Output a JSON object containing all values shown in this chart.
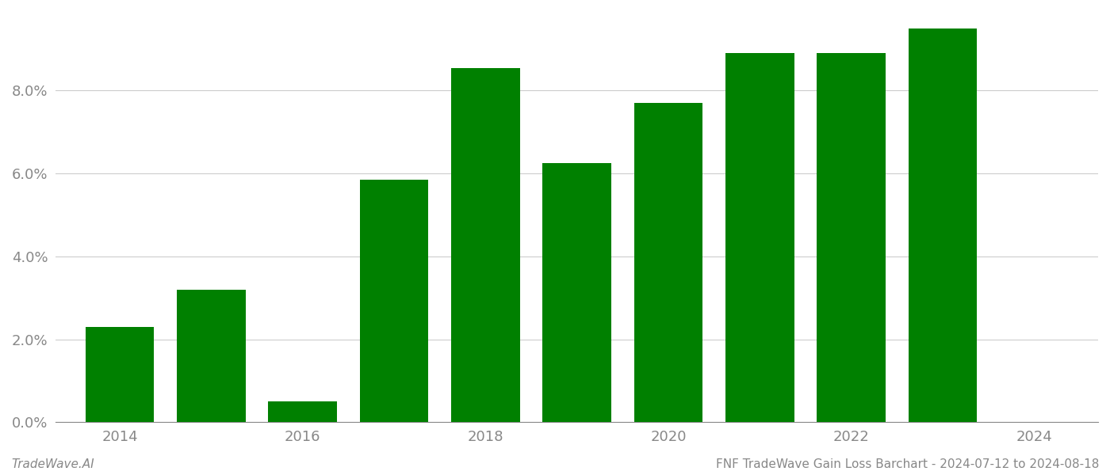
{
  "years": [
    2014,
    2015,
    2016,
    2017,
    2018,
    2019,
    2020,
    2021,
    2022,
    2023
  ],
  "values": [
    0.023,
    0.032,
    0.005,
    0.0585,
    0.0855,
    0.0625,
    0.077,
    0.089,
    0.089,
    0.095
  ],
  "bar_color": "#008000",
  "ylim": [
    0,
    0.099
  ],
  "yticks": [
    0.0,
    0.02,
    0.04,
    0.06,
    0.08
  ],
  "background_color": "#ffffff",
  "grid_color": "#cccccc",
  "footer_left": "TradeWave.AI",
  "footer_right": "FNF TradeWave Gain Loss Barchart - 2024-07-12 to 2024-08-18",
  "footer_fontsize": 11,
  "tick_label_color": "#888888",
  "tick_fontsize": 13,
  "bar_width": 0.75,
  "xlim": [
    2013.3,
    2024.7
  ],
  "xticks": [
    2014,
    2016,
    2018,
    2020,
    2022,
    2024
  ]
}
